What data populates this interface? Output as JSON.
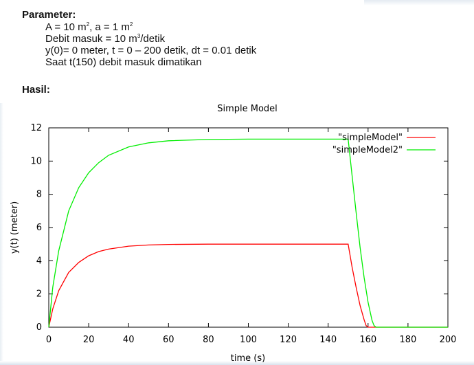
{
  "parameter": {
    "heading": "Parameter:",
    "lines": [
      [
        "A = 10 m",
        "2",
        ", a = 1 m",
        "2"
      ],
      [
        "Debit masuk = 10 m",
        "3",
        "/detik"
      ],
      [
        "y(0)= 0 meter, t = 0 – 200 detik, dt = 0.01 detik"
      ],
      [
        "Saat t(150) debit masuk dimatikan"
      ]
    ]
  },
  "hasil": {
    "heading": "Hasil:"
  },
  "chart_data": {
    "type": "line",
    "title": "Simple Model",
    "xlabel": "time (s)",
    "ylabel": "y(t) (meter)",
    "xlim": [
      0,
      200
    ],
    "ylim": [
      0,
      12
    ],
    "xticks": [
      0,
      20,
      40,
      60,
      80,
      100,
      120,
      140,
      160,
      180,
      200
    ],
    "yticks": [
      0,
      2,
      4,
      6,
      8,
      10,
      12
    ],
    "grid": false,
    "legend_position": "top-right",
    "series": [
      {
        "name": "\"simpleModel\"",
        "color": "#ff0000",
        "x": [
          0,
          2,
          5,
          10,
          15,
          20,
          25,
          30,
          40,
          50,
          60,
          80,
          100,
          120,
          140,
          150,
          152,
          154,
          156,
          158,
          159,
          160,
          200
        ],
        "y": [
          0,
          1.1,
          2.2,
          3.3,
          3.9,
          4.3,
          4.55,
          4.7,
          4.88,
          4.95,
          4.98,
          5.0,
          5.0,
          5.0,
          5.0,
          5.0,
          3.6,
          2.4,
          1.3,
          0.45,
          0.1,
          0,
          0
        ]
      },
      {
        "name": "\"simpleModel2\"",
        "color": "#00ee00",
        "x": [
          0,
          2,
          5,
          10,
          15,
          20,
          25,
          30,
          40,
          50,
          60,
          80,
          100,
          120,
          140,
          150,
          152,
          154,
          156,
          158,
          160,
          162,
          163,
          164,
          200
        ],
        "y": [
          0,
          2.4,
          4.6,
          7.0,
          8.4,
          9.3,
          9.9,
          10.35,
          10.85,
          11.1,
          11.22,
          11.3,
          11.32,
          11.32,
          11.32,
          11.32,
          9.1,
          6.9,
          4.8,
          3.0,
          1.5,
          0.4,
          0.1,
          0,
          0
        ]
      }
    ]
  }
}
